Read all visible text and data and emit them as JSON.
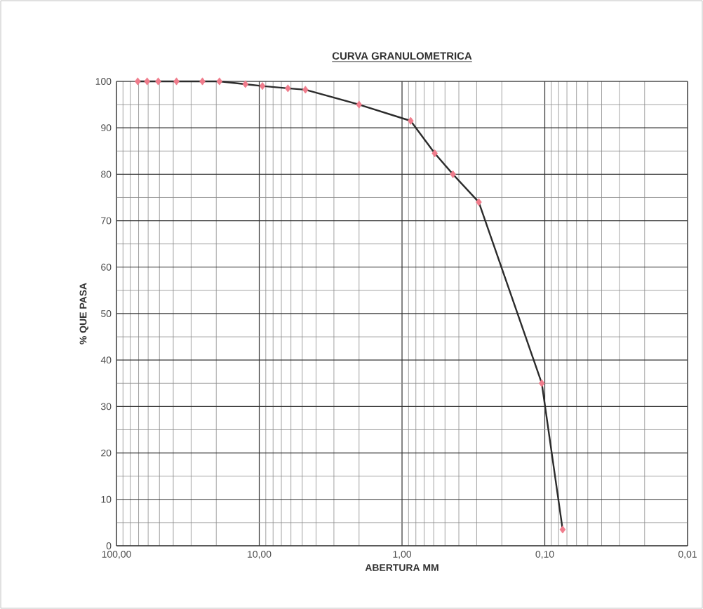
{
  "chart_data": {
    "type": "line",
    "title": "CURVA GRANULOMETRICA",
    "xlabel": "ABERTURA MM",
    "ylabel": "% QUE PASA",
    "log": "x",
    "grid": true,
    "xlim": [
      100,
      0.01
    ],
    "ylim": [
      0,
      100
    ],
    "xticks": [
      {
        "value": 100,
        "label": "100,00"
      },
      {
        "value": 10,
        "label": "10,00"
      },
      {
        "value": 1,
        "label": "1,00"
      },
      {
        "value": 0.1,
        "label": "0,10"
      },
      {
        "value": 0.01,
        "label": "0,01"
      }
    ],
    "yticks": [
      0,
      10,
      20,
      30,
      40,
      50,
      60,
      70,
      80,
      90,
      100
    ],
    "series": [
      {
        "color": "#2b2b2b",
        "marker": "none",
        "line_style": "solid",
        "x": [
          71,
          61,
          51,
          38,
          25,
          19,
          12.5,
          9.5,
          6.3,
          4.75,
          2.0,
          0.87,
          0.59,
          0.44,
          0.29,
          0.105,
          0.075
        ],
        "values": [
          100,
          100,
          100,
          100,
          100,
          100,
          99.4,
          99,
          98.5,
          98.2,
          95,
          91.5,
          84.5,
          80,
          74,
          35,
          3.5
        ]
      },
      {
        "type": "scatter",
        "color": "#f07c8c",
        "marker": "diamond",
        "x": [
          71,
          61,
          51,
          38,
          25,
          19,
          12.5,
          9.5,
          6.3,
          4.75,
          2.0,
          0.87,
          0.59,
          0.44,
          0.29,
          0.105,
          0.075
        ],
        "values": [
          100,
          100,
          100,
          100,
          100,
          100,
          99.4,
          99,
          98.5,
          98.2,
          95,
          91.5,
          84.5,
          80,
          74,
          35,
          3.5
        ]
      }
    ]
  }
}
